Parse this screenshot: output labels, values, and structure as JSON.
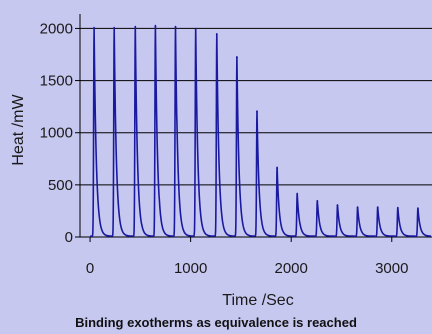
{
  "caption": "Binding exotherms as equivalence is reached",
  "chart_data": {
    "type": "line",
    "title": "",
    "xlabel": "Time /Sec",
    "ylabel": "Heat /mW",
    "xlim": [
      -100,
      3400
    ],
    "ylim": [
      0,
      2100
    ],
    "xticks": [
      0,
      1000,
      2000,
      3000
    ],
    "yticks": [
      0,
      500,
      1000,
      1500,
      2000
    ],
    "grid": "horizontal",
    "line_color": "#1a1aa0",
    "plot_background": "#c7c8f0",
    "series": [
      {
        "peaks": [
          {
            "x": 40,
            "y": 2000
          },
          {
            "x": 240,
            "y": 2000
          },
          {
            "x": 450,
            "y": 2010
          },
          {
            "x": 650,
            "y": 2020
          },
          {
            "x": 850,
            "y": 2010
          },
          {
            "x": 1050,
            "y": 1990
          },
          {
            "x": 1260,
            "y": 1940
          },
          {
            "x": 1460,
            "y": 1720
          },
          {
            "x": 1660,
            "y": 1200
          },
          {
            "x": 1860,
            "y": 660
          },
          {
            "x": 2060,
            "y": 410
          },
          {
            "x": 2260,
            "y": 340
          },
          {
            "x": 2460,
            "y": 300
          },
          {
            "x": 2660,
            "y": 280
          },
          {
            "x": 2860,
            "y": 280
          },
          {
            "x": 3060,
            "y": 275
          },
          {
            "x": 3260,
            "y": 270
          }
        ]
      }
    ]
  }
}
